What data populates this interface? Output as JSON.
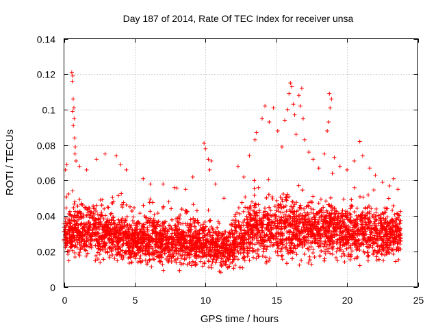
{
  "chart_data": {
    "type": "scatter",
    "title": "Day 187 of 2014, Rate Of TEC Index for receiver unsa",
    "xlabel": "GPS time / hours",
    "ylabel": "ROTI / TECUs",
    "xlim": [
      0,
      25
    ],
    "ylim": [
      0,
      0.14
    ],
    "xticks": [
      0,
      5,
      10,
      15,
      20,
      25
    ],
    "xtick_labels": [
      "0",
      "5",
      "10",
      "15",
      "20",
      "25"
    ],
    "yticks": [
      0,
      0.02,
      0.04,
      0.06,
      0.08,
      0.1,
      0.12,
      0.14
    ],
    "ytick_labels": [
      "0",
      "0.02",
      "0.04",
      "0.06",
      "0.08",
      "0.1",
      "0.12",
      "0.14"
    ],
    "grid": true,
    "marker": "+",
    "series": [
      {
        "name": "ROTI",
        "color": "#ff0000",
        "x_range": [
          0.0,
          23.8
        ],
        "baseline_envelope": [
          {
            "x": 0.0,
            "low": 0.012,
            "high": 0.045
          },
          {
            "x": 1.0,
            "low": 0.01,
            "high": 0.048
          },
          {
            "x": 2.5,
            "low": 0.01,
            "high": 0.045
          },
          {
            "x": 4.0,
            "low": 0.01,
            "high": 0.042
          },
          {
            "x": 5.5,
            "low": 0.008,
            "high": 0.04
          },
          {
            "x": 7.0,
            "low": 0.008,
            "high": 0.038
          },
          {
            "x": 8.5,
            "low": 0.008,
            "high": 0.038
          },
          {
            "x": 10.0,
            "low": 0.008,
            "high": 0.036
          },
          {
            "x": 11.5,
            "low": 0.006,
            "high": 0.03
          },
          {
            "x": 12.2,
            "low": 0.008,
            "high": 0.04
          },
          {
            "x": 13.5,
            "low": 0.01,
            "high": 0.048
          },
          {
            "x": 15.0,
            "low": 0.01,
            "high": 0.05
          },
          {
            "x": 16.5,
            "low": 0.01,
            "high": 0.05
          },
          {
            "x": 18.0,
            "low": 0.01,
            "high": 0.048
          },
          {
            "x": 19.5,
            "low": 0.01,
            "high": 0.048
          },
          {
            "x": 21.0,
            "low": 0.01,
            "high": 0.046
          },
          {
            "x": 22.5,
            "low": 0.01,
            "high": 0.044
          },
          {
            "x": 23.8,
            "low": 0.01,
            "high": 0.04
          }
        ],
        "outliers": [
          {
            "x": 0.55,
            "y": 0.121
          },
          {
            "x": 0.62,
            "y": 0.119
          },
          {
            "x": 0.58,
            "y": 0.116
          },
          {
            "x": 0.65,
            "y": 0.106
          },
          {
            "x": 0.7,
            "y": 0.101
          },
          {
            "x": 0.6,
            "y": 0.099
          },
          {
            "x": 0.72,
            "y": 0.095
          },
          {
            "x": 0.66,
            "y": 0.091
          },
          {
            "x": 0.75,
            "y": 0.084
          },
          {
            "x": 0.8,
            "y": 0.079
          },
          {
            "x": 0.78,
            "y": 0.075
          },
          {
            "x": 0.85,
            "y": 0.071
          },
          {
            "x": 0.2,
            "y": 0.069
          },
          {
            "x": 0.1,
            "y": 0.066
          },
          {
            "x": 1.1,
            "y": 0.068
          },
          {
            "x": 1.6,
            "y": 0.066
          },
          {
            "x": 2.3,
            "y": 0.072
          },
          {
            "x": 2.9,
            "y": 0.075
          },
          {
            "x": 3.7,
            "y": 0.074
          },
          {
            "x": 4.0,
            "y": 0.069
          },
          {
            "x": 4.4,
            "y": 0.066
          },
          {
            "x": 5.6,
            "y": 0.061
          },
          {
            "x": 6.1,
            "y": 0.058
          },
          {
            "x": 7.0,
            "y": 0.058
          },
          {
            "x": 7.8,
            "y": 0.056
          },
          {
            "x": 8.6,
            "y": 0.055
          },
          {
            "x": 9.1,
            "y": 0.062
          },
          {
            "x": 9.9,
            "y": 0.081
          },
          {
            "x": 10.0,
            "y": 0.078
          },
          {
            "x": 10.2,
            "y": 0.072
          },
          {
            "x": 10.4,
            "y": 0.071
          },
          {
            "x": 10.3,
            "y": 0.066
          },
          {
            "x": 10.7,
            "y": 0.058
          },
          {
            "x": 11.3,
            "y": 0.05
          },
          {
            "x": 12.3,
            "y": 0.068
          },
          {
            "x": 12.7,
            "y": 0.062
          },
          {
            "x": 13.1,
            "y": 0.074
          },
          {
            "x": 13.5,
            "y": 0.083
          },
          {
            "x": 13.6,
            "y": 0.087
          },
          {
            "x": 14.0,
            "y": 0.095
          },
          {
            "x": 14.2,
            "y": 0.102
          },
          {
            "x": 14.5,
            "y": 0.093
          },
          {
            "x": 14.8,
            "y": 0.101
          },
          {
            "x": 15.1,
            "y": 0.088
          },
          {
            "x": 15.4,
            "y": 0.079
          },
          {
            "x": 15.6,
            "y": 0.094
          },
          {
            "x": 15.8,
            "y": 0.1
          },
          {
            "x": 15.9,
            "y": 0.109
          },
          {
            "x": 16.0,
            "y": 0.115
          },
          {
            "x": 16.1,
            "y": 0.113
          },
          {
            "x": 16.2,
            "y": 0.103
          },
          {
            "x": 16.3,
            "y": 0.097
          },
          {
            "x": 16.4,
            "y": 0.086
          },
          {
            "x": 16.6,
            "y": 0.108
          },
          {
            "x": 16.7,
            "y": 0.102
          },
          {
            "x": 16.8,
            "y": 0.112
          },
          {
            "x": 16.9,
            "y": 0.095
          },
          {
            "x": 17.0,
            "y": 0.083
          },
          {
            "x": 17.3,
            "y": 0.076
          },
          {
            "x": 17.6,
            "y": 0.072
          },
          {
            "x": 18.0,
            "y": 0.067
          },
          {
            "x": 18.4,
            "y": 0.075
          },
          {
            "x": 18.6,
            "y": 0.088
          },
          {
            "x": 18.7,
            "y": 0.093
          },
          {
            "x": 18.8,
            "y": 0.101
          },
          {
            "x": 18.9,
            "y": 0.106
          },
          {
            "x": 18.75,
            "y": 0.109
          },
          {
            "x": 19.1,
            "y": 0.073
          },
          {
            "x": 19.5,
            "y": 0.068
          },
          {
            "x": 20.0,
            "y": 0.066
          },
          {
            "x": 20.5,
            "y": 0.071
          },
          {
            "x": 20.9,
            "y": 0.082
          },
          {
            "x": 21.1,
            "y": 0.074
          },
          {
            "x": 21.6,
            "y": 0.067
          },
          {
            "x": 22.0,
            "y": 0.063
          },
          {
            "x": 22.5,
            "y": 0.059
          },
          {
            "x": 23.0,
            "y": 0.057
          },
          {
            "x": 23.3,
            "y": 0.061
          },
          {
            "x": 23.6,
            "y": 0.055
          }
        ]
      }
    ]
  }
}
